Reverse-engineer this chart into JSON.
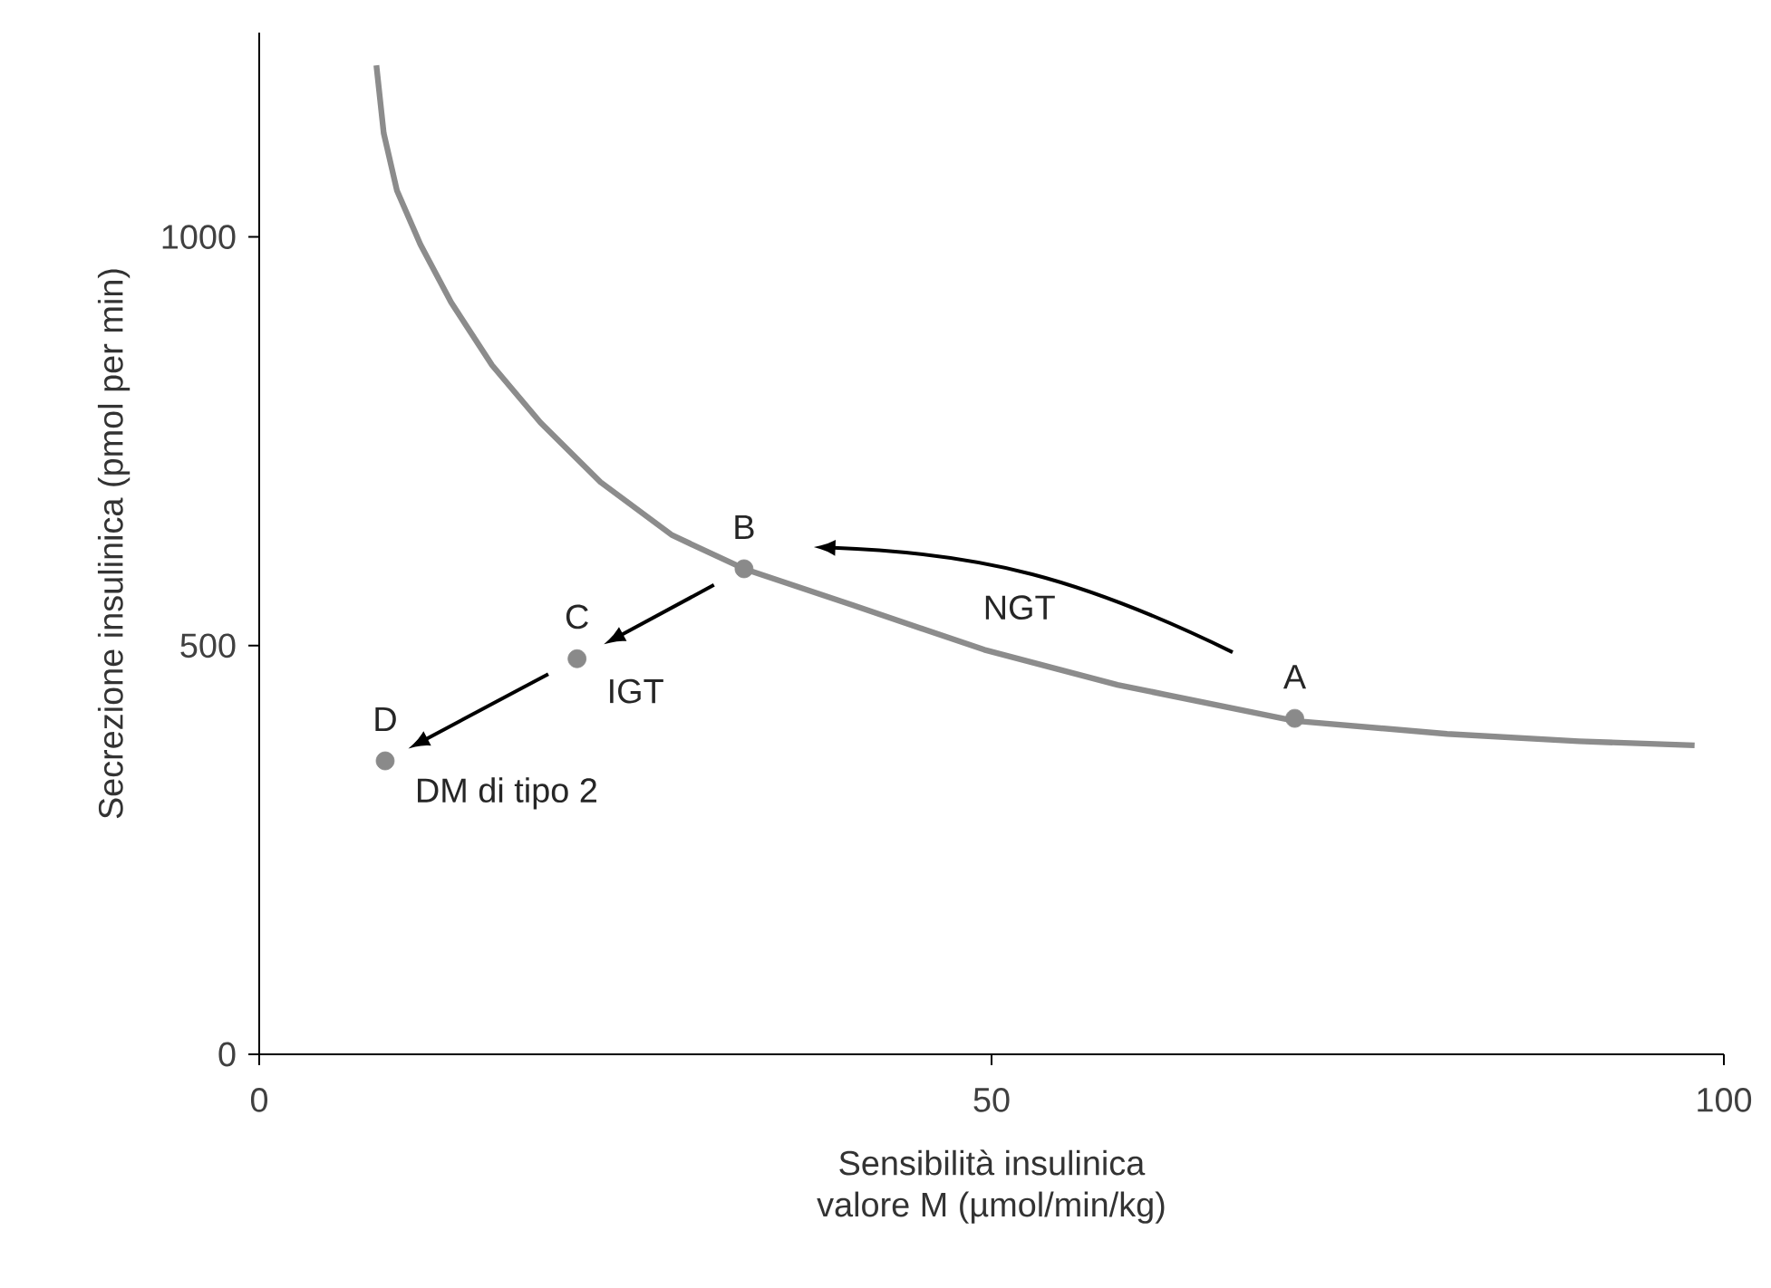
{
  "chart_data": {
    "type": "line",
    "xlabel": "Sensibilità insulinica\nvalore M (µmol/min/kg)",
    "ylabel": "Secrezione insulinica (pmol per min)",
    "xlim": [
      0,
      100
    ],
    "ylim": [
      0,
      1250
    ],
    "xticks": [
      0,
      50,
      100
    ],
    "yticks": [
      0,
      500,
      1000
    ],
    "series": [
      {
        "color": "#8c8c8c",
        "marker": "none",
        "x": [
          8.0,
          8.5,
          9.4,
          11.0,
          13.1,
          15.9,
          19.2,
          23.3,
          28.2,
          33.1,
          40.6,
          49.5,
          58.6,
          70.7,
          81.1,
          90.1,
          98.0
        ],
        "values": [
          1210,
          1127,
          1057,
          991,
          920,
          843,
          773,
          700,
          635,
          594,
          549,
          495,
          452,
          408,
          392,
          383,
          378
        ]
      },
      {
        "type": "scatter",
        "color": "#8a8a8a",
        "marker": "circle",
        "x": [
          70.7,
          33.1,
          21.7,
          8.6
        ],
        "values": [
          411,
          594,
          484,
          359
        ]
      }
    ],
    "annotations": [
      {
        "text": "A",
        "x": 70.7,
        "y": 411
      },
      {
        "text": "B",
        "x": 33.1,
        "y": 594
      },
      {
        "text": "C",
        "x": 21.7,
        "y": 484
      },
      {
        "text": "D",
        "x": 8.6,
        "y": 359
      },
      "NGT",
      {
        "text": "IGT",
        "x": 21.7,
        "y": 484
      },
      {
        "text": "DM di tipo 2",
        "x": 8.6,
        "y": 359
      }
    ]
  }
}
